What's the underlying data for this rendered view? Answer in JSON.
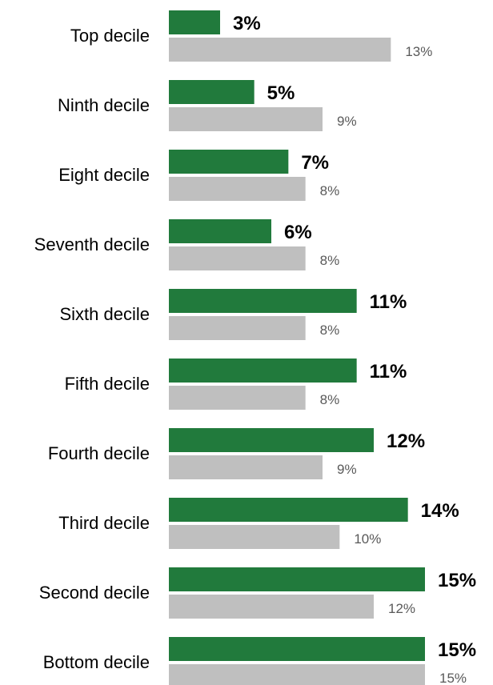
{
  "chart_data": {
    "type": "bar",
    "orientation": "horizontal",
    "categories": [
      "Top decile",
      "Ninth decile",
      "Eight decile",
      "Seventh decile",
      "Sixth decile",
      "Fifth decile",
      "Fourth decile",
      "Third decile",
      "Second decile",
      "Bottom decile"
    ],
    "series": [
      {
        "values": [
          3,
          5,
          7,
          6,
          11,
          11,
          12,
          14,
          15,
          15
        ],
        "labels": [
          "3%",
          "5%",
          "7%",
          "6%",
          "11%",
          "11%",
          "12%",
          "14%",
          "15%",
          "15%"
        ],
        "color": "#217a3c"
      },
      {
        "values": [
          13,
          9,
          8,
          8,
          8,
          8,
          9,
          10,
          12,
          15
        ],
        "labels": [
          "13%",
          "9%",
          "8%",
          "8%",
          "8%",
          "8%",
          "9%",
          "10%",
          "12%",
          "15%"
        ],
        "color": "#bfbfbf"
      }
    ],
    "xlim": [
      0,
      15
    ],
    "grid": false,
    "legend": "none",
    "title": "",
    "xlabel": "",
    "ylabel": ""
  }
}
